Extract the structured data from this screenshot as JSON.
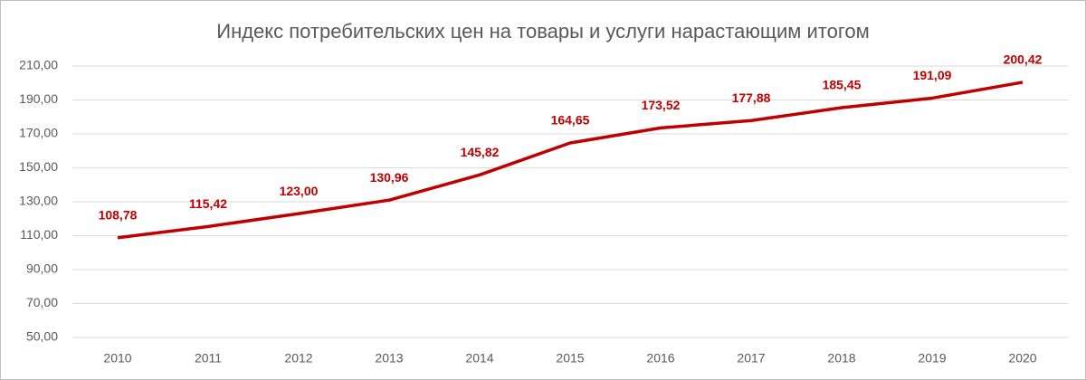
{
  "chart_data": {
    "type": "line",
    "title": "Индекс потребительских цен на товары и услуги нарастающим итогом",
    "categories": [
      "2010",
      "2011",
      "2012",
      "2013",
      "2014",
      "2015",
      "2016",
      "2017",
      "2018",
      "2019",
      "2020"
    ],
    "series": [
      {
        "color": "#c00000",
        "values": [
          108.78,
          115.42,
          123.0,
          130.96,
          145.82,
          164.65,
          173.52,
          177.88,
          185.45,
          191.09,
          200.42
        ],
        "value_labels": [
          "108,78",
          "115,42",
          "123,00",
          "130,96",
          "145,82",
          "164,65",
          "173,52",
          "177,88",
          "185,45",
          "191,09",
          "200,42"
        ]
      }
    ],
    "ylim": [
      50,
      210
    ],
    "yticks": [
      {
        "value": 50,
        "label": "50,00"
      },
      {
        "value": 70,
        "label": "70,00"
      },
      {
        "value": 90,
        "label": "90,00"
      },
      {
        "value": 110,
        "label": "110,00"
      },
      {
        "value": 130,
        "label": "130,00"
      },
      {
        "value": 150,
        "label": "150,00"
      },
      {
        "value": 170,
        "label": "170,00"
      },
      {
        "value": 190,
        "label": "190,00"
      },
      {
        "value": 210,
        "label": "210,00"
      }
    ],
    "grid": true
  }
}
